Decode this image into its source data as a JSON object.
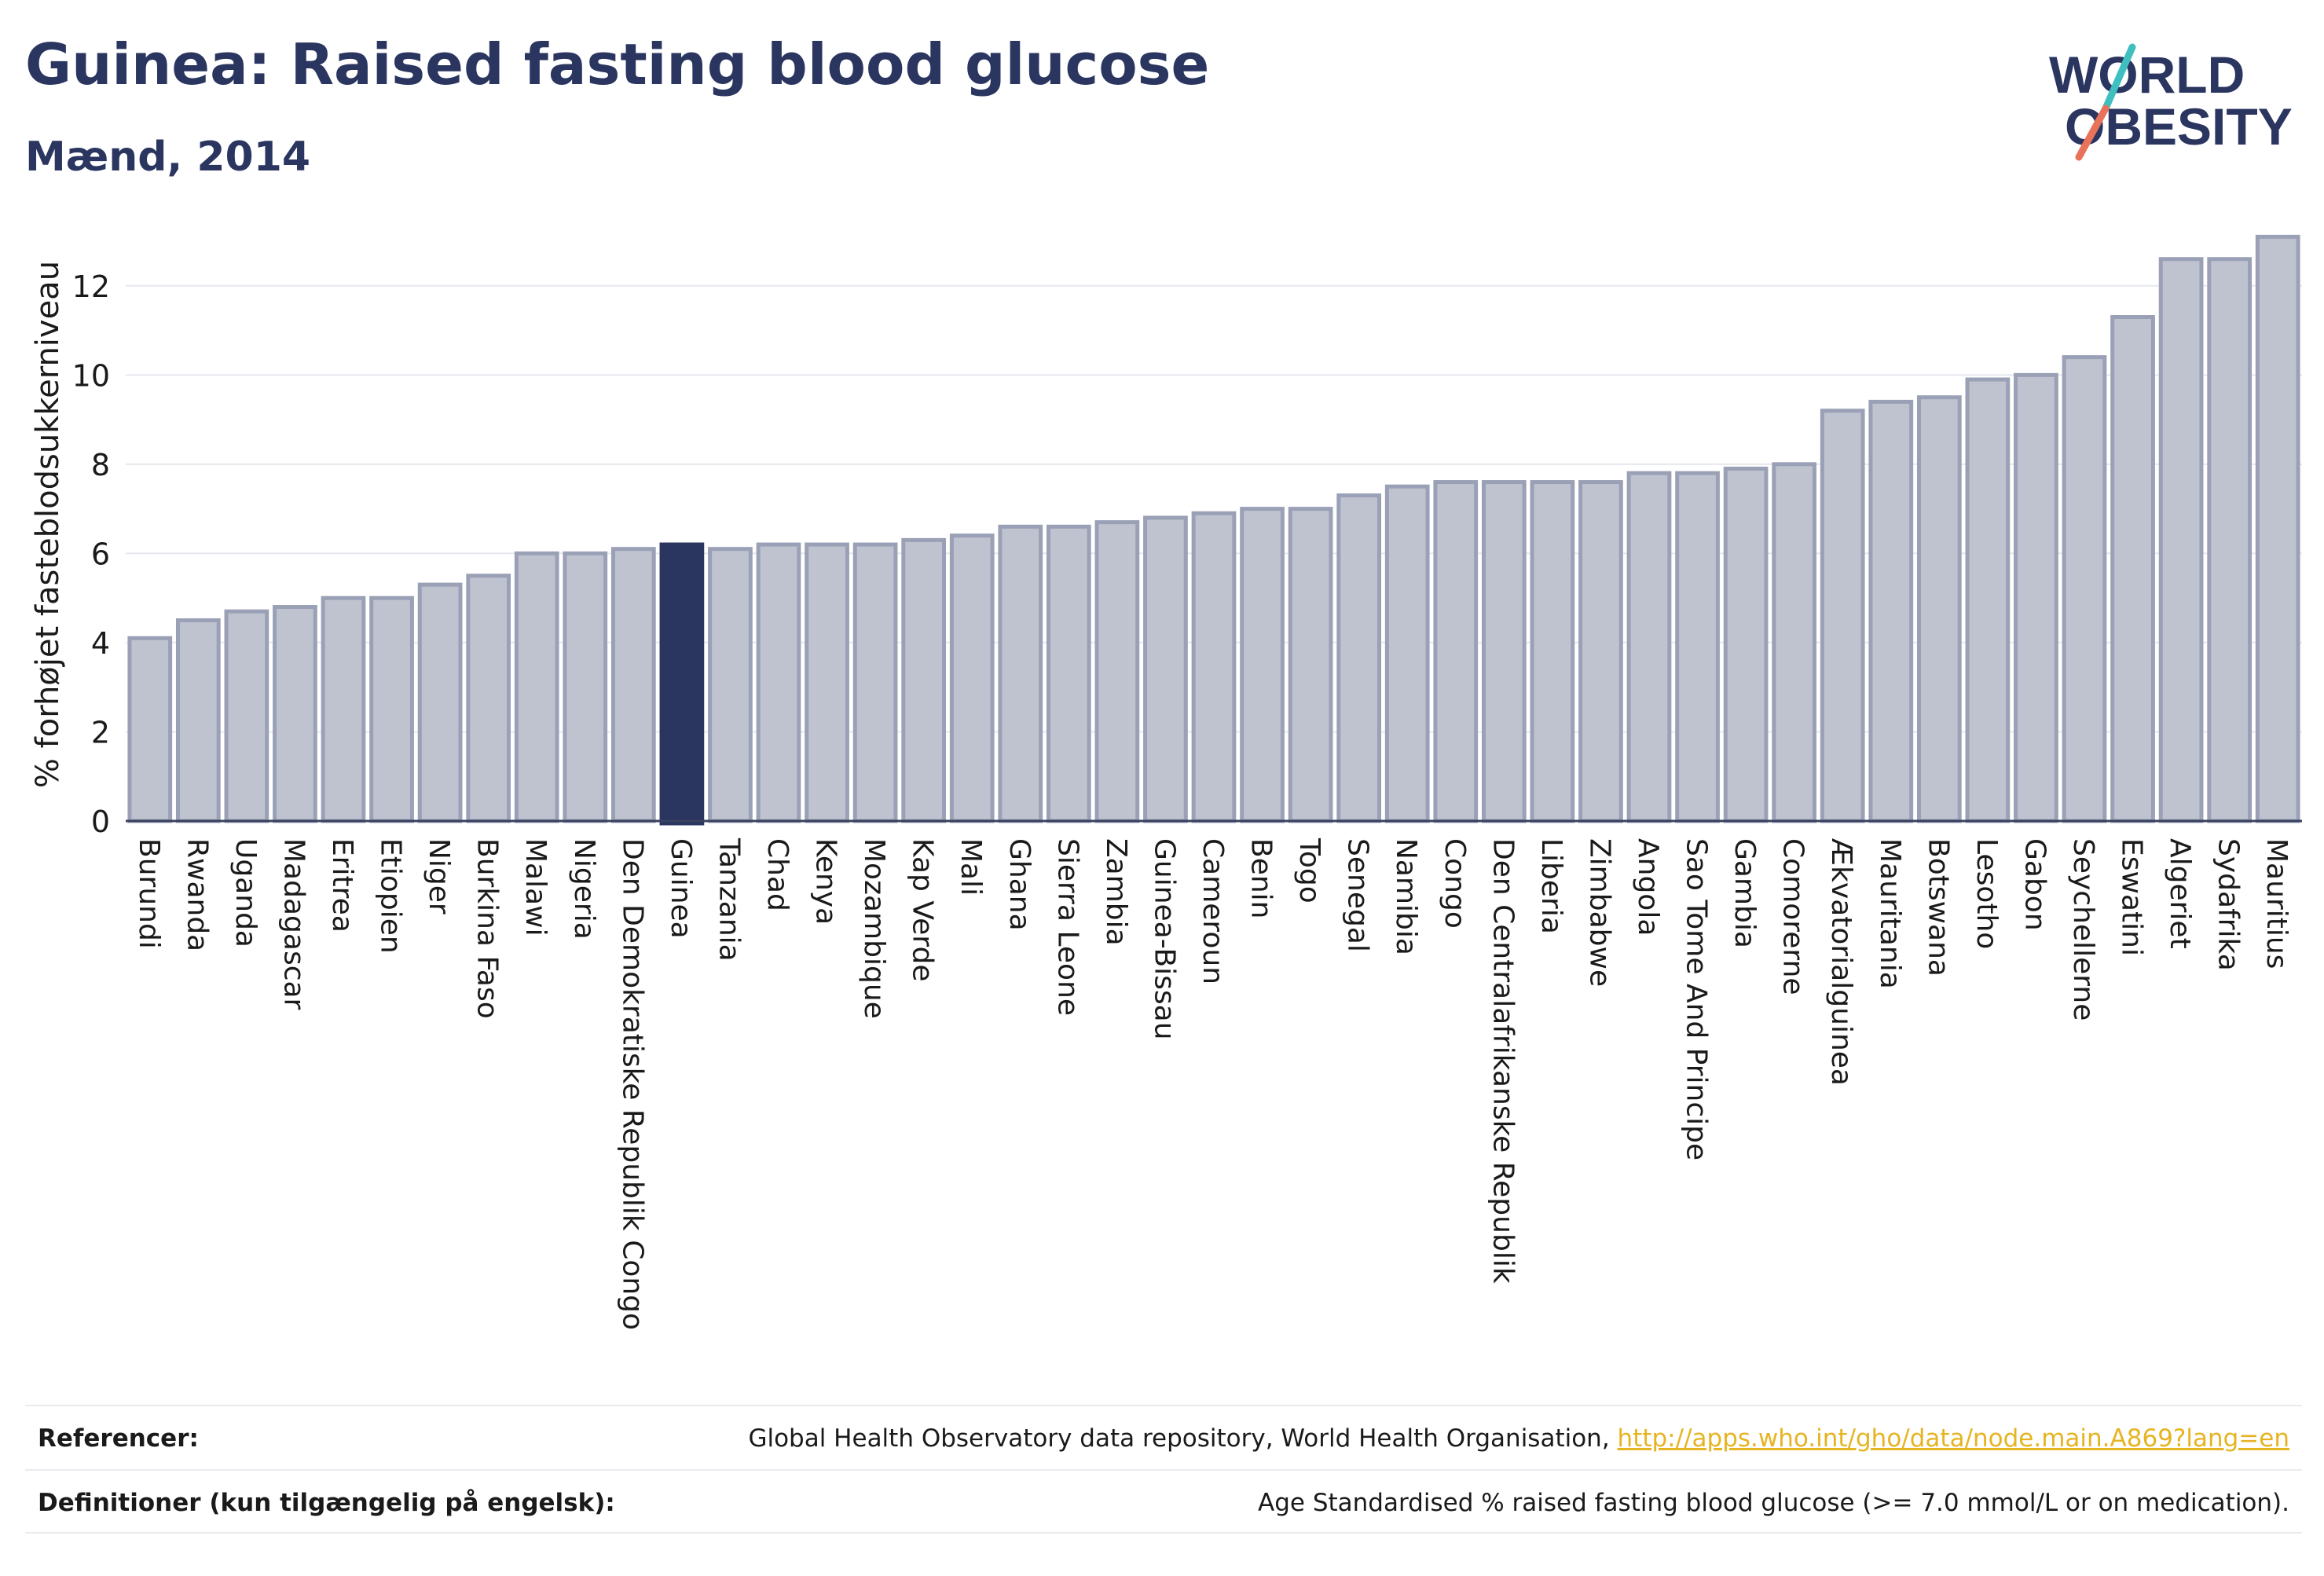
{
  "header": {
    "title": "Guinea: Raised fasting blood glucose",
    "subtitle": "Mænd, 2014",
    "logo_text_line1": "WORLD",
    "logo_text_line2": "OBESITY"
  },
  "colors": {
    "bar_default": "#bfc3d0",
    "bar_default_border": "#9aa0b5",
    "bar_highlight": "#2a3560",
    "text_dark": "#2a3560",
    "link": "#e6b422",
    "logo_slash_teal": "#3fbfbf",
    "logo_slash_red": "#e8735a"
  },
  "chart_data": {
    "type": "bar",
    "ylabel": "% forhøjet fasteblodsukkerniveau",
    "xlabel": "",
    "ylim": [
      0,
      13.3
    ],
    "yticks": [
      0,
      2,
      4,
      6,
      8,
      10,
      12
    ],
    "highlight": "Guinea",
    "grid": true,
    "categories": [
      "Burundi",
      "Rwanda",
      "Uganda",
      "Madagascar",
      "Eritrea",
      "Etiopien",
      "Niger",
      "Burkina Faso",
      "Malawi",
      "Nigeria",
      "Den Demokratiske Republik Congo",
      "Guinea",
      "Tanzania",
      "Chad",
      "Kenya",
      "Mozambique",
      "Kap Verde",
      "Mali",
      "Ghana",
      "Sierra Leone",
      "Zambia",
      "Guinea-Bissau",
      "Cameroun",
      "Benin",
      "Togo",
      "Senegal",
      "Namibia",
      "Congo",
      "Den Centralafrikanske Republik",
      "Liberia",
      "Zimbabwe",
      "Angola",
      "Sao Tome And Principe",
      "Gambia",
      "Comorerne",
      "Ækvatorialguinea",
      "Mauritania",
      "Botswana",
      "Lesotho",
      "Gabon",
      "Seychellerne",
      "Eswatini",
      "Algeriet",
      "Sydafrika",
      "Mauritius"
    ],
    "values": [
      4.1,
      4.5,
      4.7,
      4.8,
      5.0,
      5.0,
      5.3,
      5.5,
      6.0,
      6.0,
      6.1,
      6.2,
      6.1,
      6.2,
      6.2,
      6.2,
      6.3,
      6.4,
      6.6,
      6.6,
      6.7,
      6.8,
      6.9,
      7.0,
      7.0,
      7.3,
      7.5,
      7.6,
      7.6,
      7.6,
      7.6,
      7.8,
      7.8,
      7.9,
      8.0,
      9.2,
      9.4,
      9.5,
      9.9,
      10.0,
      10.4,
      11.3,
      12.6,
      12.6,
      13.1
    ]
  },
  "footer": {
    "references_label": "Referencer:",
    "references_text": "Global Health Observatory data repository, World Health Organisation, ",
    "references_link": "http://apps.who.int/gho/data/node.main.A869?lang=en",
    "definitions_label": "Definitioner (kun tilgængelig på engelsk):",
    "definitions_text": "Age Standardised % raised fasting blood glucose (>= 7.0 mmol/L or on medication)."
  }
}
